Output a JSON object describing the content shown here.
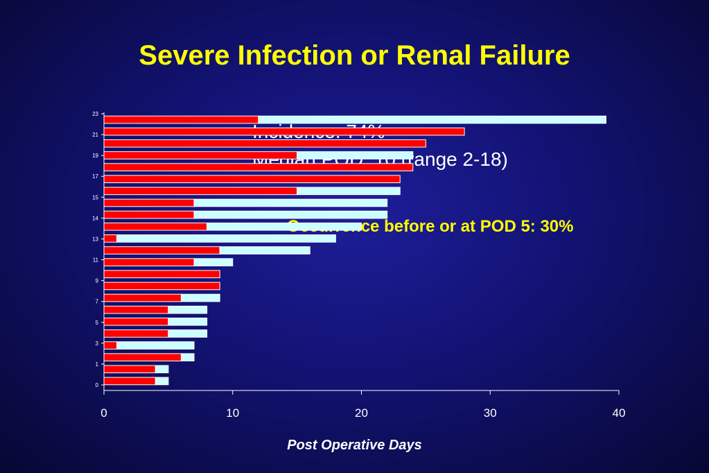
{
  "title": "Severe Infection or Renal Failure",
  "stats": {
    "incidence": "Incidence: 74%",
    "median": "Median POD: 10 (range 2-18)"
  },
  "occurrence": "Occurrence before or at POD 5:   30%",
  "colors": {
    "background": "#121272",
    "title": "#ffff00",
    "bar_event": "#ff0000",
    "bar_remaining": "#ccffff"
  },
  "chart_data": {
    "type": "bar",
    "orientation": "horizontal",
    "stacked": true,
    "xlabel": "Post Operative Days",
    "xlim": [
      0,
      40
    ],
    "xticks": [
      0,
      10,
      20,
      30,
      40
    ],
    "y_tick_labels": [
      "0",
      "1",
      "3",
      "5",
      "7",
      "9",
      "11",
      "13",
      "14",
      "15",
      "17",
      "19",
      "21",
      "23"
    ],
    "series": [
      {
        "values": [
          4,
          4,
          6,
          1,
          5,
          5,
          5,
          6,
          9,
          9,
          7,
          9,
          1,
          8,
          7,
          7,
          15,
          23,
          24,
          15,
          25,
          28,
          12
        ]
      },
      {
        "values": [
          1,
          1,
          1,
          6,
          3,
          3,
          3,
          3,
          0,
          0,
          3,
          7,
          17,
          12,
          15,
          15,
          8,
          0,
          0,
          9,
          0,
          0,
          27
        ]
      }
    ],
    "totals": [
      5,
      5,
      7,
      7,
      8,
      8,
      8,
      9,
      9,
      9,
      10,
      16,
      18,
      20,
      22,
      22,
      23,
      23,
      24,
      24,
      25,
      28,
      39
    ]
  }
}
